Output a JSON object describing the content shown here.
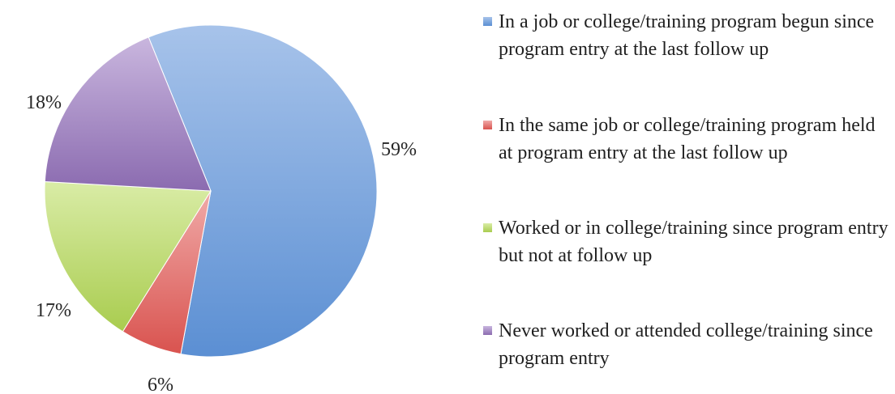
{
  "chart_data": {
    "type": "pie",
    "title": "",
    "slices": [
      {
        "label": "In a job or college/training program begun since program entry at the last follow up",
        "value": 59,
        "display": "59%",
        "color": "#5b8fd3",
        "color_light": "#a7c3ea"
      },
      {
        "label": "In the same job or college/training program held at program entry at the last follow up",
        "value": 6,
        "display": "6%",
        "color": "#d9534f",
        "color_light": "#f0aaa8"
      },
      {
        "label": "Worked or in college/training since program entry but not at follow up",
        "value": 17,
        "display": "17%",
        "color": "#a9cc4f",
        "color_light": "#d9eca6"
      },
      {
        "label": "Never worked or attended college/training since program entry",
        "value": 18,
        "display": "18%",
        "color": "#8b6bb0",
        "color_light": "#c9b6de"
      }
    ],
    "legend_position": "right",
    "start_angle_deg": -22,
    "direction": "clockwise"
  }
}
